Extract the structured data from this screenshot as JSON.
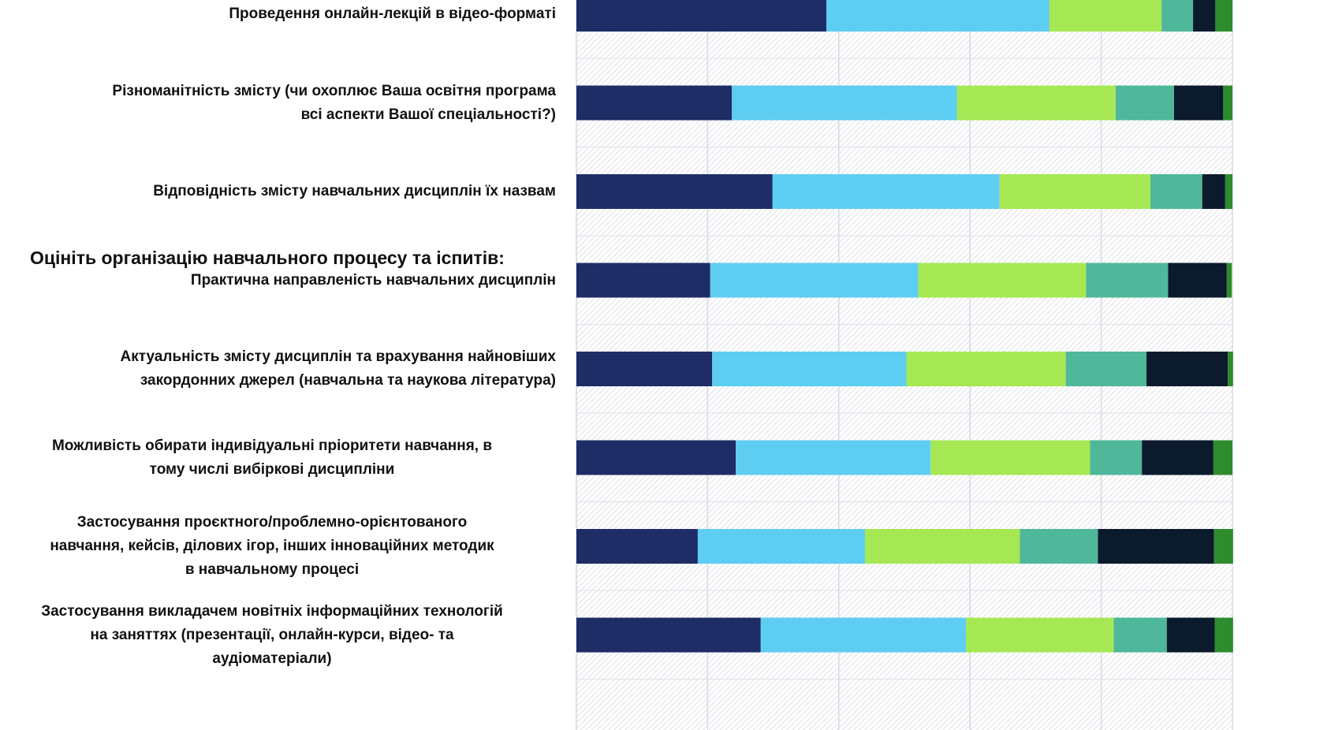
{
  "chart_data": {
    "type": "stacked_bar_horizontal",
    "heading": "Оцініть організацію навчального процесу та іспитів:",
    "categories": [
      "Проведення онлайн-лекцій в відео-форматі",
      "Різноманітність змісту (чи охоплює Ваша освітня програма\nвсі аспекти Вашої спеціальності?)",
      "Відповідність змісту навчальних дисциплін їх назвам",
      "Практична направленість навчальних дисциплін",
      "Актуальність змісту дисциплін та врахування найновіших\nзакордонних джерел (навчальна та наукова література)",
      "Можливість обирати індивідуальні пріоритети навчання, в\nтому числі вибіркові дисципліни",
      "Застосування проєктного/проблемно-орієнтованого\nнавчання, кейсів, ділових ігор, інших інноваційних методик\nв навчальному процесі",
      "Застосування викладачем новітніх інформаційних технологій\nна заняттях (презентації, онлайн-курси, відео- та\nаудіоматеріали)"
    ],
    "series": [
      {
        "color": "#1f2d66",
        "values": [
          38.1,
          23.7,
          29.9,
          20.4,
          20.7,
          24.3,
          18.5,
          28.1
        ]
      },
      {
        "color": "#5ecdf2",
        "values": [
          34.0,
          34.3,
          34.6,
          31.7,
          29.6,
          29.7,
          25.5,
          31.3
        ]
      },
      {
        "color": "#a5e854",
        "values": [
          17.1,
          24.2,
          23.0,
          25.6,
          24.3,
          24.3,
          23.6,
          22.5
        ]
      },
      {
        "color": "#4fb79a",
        "values": [
          4.8,
          8.9,
          7.9,
          12.5,
          12.3,
          7.9,
          11.9,
          8.1
        ]
      },
      {
        "color": "#0b1a2c",
        "values": [
          3.4,
          7.5,
          3.5,
          8.9,
          12.4,
          10.9,
          17.7,
          7.3
        ]
      },
      {
        "color": "#2e8b2e",
        "values": [
          2.6,
          1.4,
          1.1,
          0.8,
          0.8,
          2.9,
          2.9,
          2.8
        ]
      }
    ],
    "xlim": [
      0,
      100
    ],
    "xticks": [
      0,
      20,
      40,
      60,
      80,
      100
    ],
    "grid": true
  }
}
